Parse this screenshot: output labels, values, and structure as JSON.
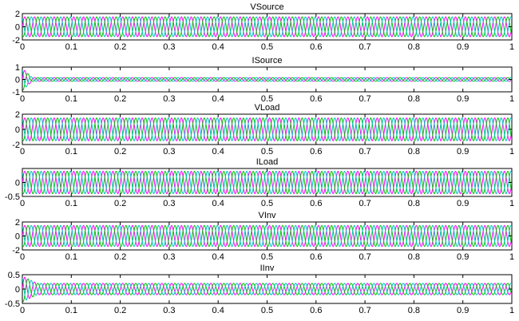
{
  "chart_data": [
    {
      "type": "line",
      "title": "VSource",
      "ylim": [
        -2,
        2
      ],
      "yticks": [
        2,
        0,
        -2
      ],
      "xlim": [
        0,
        1
      ],
      "xticks": [
        0,
        0.1,
        0.2,
        0.3,
        0.4,
        0.5,
        0.6,
        0.7,
        0.8,
        0.9,
        1
      ],
      "grid": false,
      "frequency_hz": 50,
      "series": [
        {
          "amplitude": 1.5,
          "phase_deg": 0,
          "color": "#ff00ff"
        },
        {
          "amplitude": 1.5,
          "phase_deg": -120,
          "color": "#00c000"
        },
        {
          "amplitude": 1.5,
          "phase_deg": 120,
          "color": "#00c0c0"
        }
      ]
    },
    {
      "type": "line",
      "title": "ISource",
      "ylim": [
        -1,
        1
      ],
      "yticks": [
        1,
        0,
        -1
      ],
      "xlim": [
        0,
        1
      ],
      "xticks": [
        0,
        0.1,
        0.2,
        0.3,
        0.4,
        0.5,
        0.6,
        0.7,
        0.8,
        0.9,
        1
      ],
      "grid": false,
      "frequency_hz": 50,
      "initial_transient": {
        "peak": 0.9,
        "duration": 0.02
      },
      "series": [
        {
          "amplitude": 0.15,
          "phase_deg": 0,
          "color": "#ff00ff"
        },
        {
          "amplitude": 0.15,
          "phase_deg": -120,
          "color": "#00c000"
        },
        {
          "amplitude": 0.15,
          "phase_deg": 120,
          "color": "#00c0c0"
        }
      ]
    },
    {
      "type": "line",
      "title": "VLoad",
      "ylim": [
        -2,
        2
      ],
      "yticks": [
        2,
        0,
        -2
      ],
      "xlim": [
        0,
        1
      ],
      "xticks": [
        0,
        0.1,
        0.2,
        0.3,
        0.4,
        0.5,
        0.6,
        0.7,
        0.8,
        0.9,
        1
      ],
      "grid": false,
      "frequency_hz": 50,
      "series": [
        {
          "amplitude": 1.5,
          "phase_deg": 0,
          "color": "#ff00ff"
        },
        {
          "amplitude": 1.5,
          "phase_deg": -120,
          "color": "#00c000"
        },
        {
          "amplitude": 1.5,
          "phase_deg": 120,
          "color": "#00c0c0"
        }
      ]
    },
    {
      "type": "line",
      "title": "ILoad",
      "ylim": [
        -0.5,
        0.5
      ],
      "yticks": [
        0,
        -0.5
      ],
      "xlim": [
        0,
        1
      ],
      "xticks": [
        0,
        0.1,
        0.2,
        0.3,
        0.4,
        0.5,
        0.6,
        0.7,
        0.8,
        0.9,
        1
      ],
      "grid": false,
      "frequency_hz": 50,
      "series": [
        {
          "amplitude": 0.4,
          "phase_deg": 0,
          "color": "#ff00ff"
        },
        {
          "amplitude": 0.4,
          "phase_deg": -120,
          "color": "#00c000"
        },
        {
          "amplitude": 0.4,
          "phase_deg": 120,
          "color": "#00c0c0"
        }
      ]
    },
    {
      "type": "line",
      "title": "VInv",
      "ylim": [
        -2,
        2
      ],
      "yticks": [
        2,
        0,
        -2
      ],
      "xlim": [
        0,
        1
      ],
      "xticks": [
        0,
        0.1,
        0.2,
        0.3,
        0.4,
        0.5,
        0.6,
        0.7,
        0.8,
        0.9,
        1
      ],
      "grid": false,
      "frequency_hz": 50,
      "series": [
        {
          "amplitude": 1.5,
          "phase_deg": 0,
          "color": "#ff00ff"
        },
        {
          "amplitude": 1.5,
          "phase_deg": -120,
          "color": "#00c000"
        },
        {
          "amplitude": 1.5,
          "phase_deg": 120,
          "color": "#00c0c0"
        }
      ]
    },
    {
      "type": "line",
      "title": "IInv",
      "ylim": [
        -0.5,
        0.5
      ],
      "yticks": [
        0.5,
        0,
        -0.5
      ],
      "xlim": [
        0,
        1
      ],
      "xticks": [
        0,
        0.1,
        0.2,
        0.3,
        0.4,
        0.5,
        0.6,
        0.7,
        0.8,
        0.9,
        1
      ],
      "grid": false,
      "frequency_hz": 50,
      "initial_transient": {
        "peak": 0.45,
        "duration": 0.03
      },
      "series": [
        {
          "amplitude": 0.2,
          "phase_deg": 0,
          "color": "#ff00ff"
        },
        {
          "amplitude": 0.2,
          "phase_deg": -120,
          "color": "#00c000"
        },
        {
          "amplitude": 0.2,
          "phase_deg": 120,
          "color": "#00c0c0"
        }
      ]
    }
  ]
}
